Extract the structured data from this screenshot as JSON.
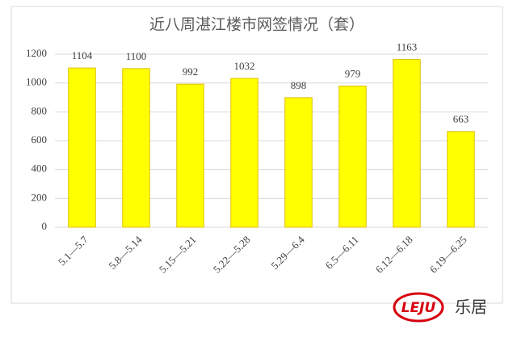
{
  "chart_data": {
    "type": "bar",
    "title": "近八周湛江楼市网签情况（套）",
    "categories": [
      "5.1—5.7",
      "5.8—5.14",
      "5.15—5.21",
      "5.22—5.28",
      "5.29—6.4",
      "6.5—6.11",
      "6.12—6.18",
      "6.19—6.25"
    ],
    "values": [
      1104,
      1100,
      992,
      1032,
      898,
      979,
      1163,
      663
    ],
    "color": "#ffff00",
    "ylim": [
      0,
      1200
    ],
    "yticks": [
      0,
      200,
      400,
      600,
      800,
      1000,
      1200
    ],
    "grid": true
  },
  "logo": {
    "mark": "LEJU",
    "name": "乐居"
  }
}
